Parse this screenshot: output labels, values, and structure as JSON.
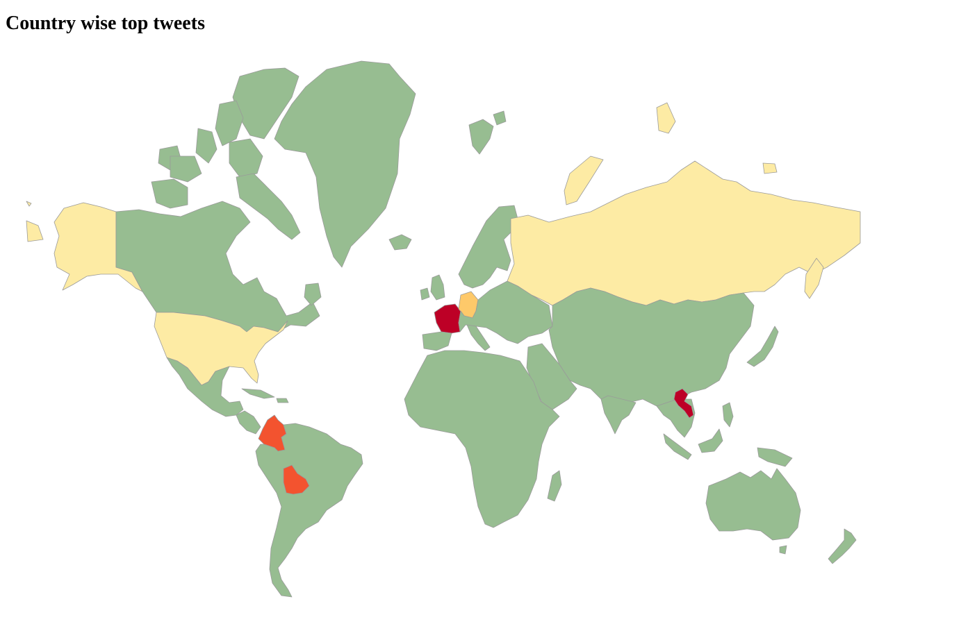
{
  "page": {
    "title": "Country wise top tweets"
  },
  "map": {
    "colors": {
      "default": "#97bd91",
      "low": "#fdeba4",
      "medium_low": "#fec96a",
      "medium_high": "#f3532f",
      "high": "#bd0026"
    },
    "highlighted_countries": [
      {
        "name": "United States",
        "level": "low"
      },
      {
        "name": "Alaska (United States)",
        "level": "low"
      },
      {
        "name": "Russia",
        "level": "low"
      },
      {
        "name": "Germany",
        "level": "medium_low"
      },
      {
        "name": "France",
        "level": "high"
      },
      {
        "name": "Laos",
        "level": "high"
      },
      {
        "name": "Colombia",
        "level": "medium_high"
      },
      {
        "name": "Bolivia",
        "level": "medium_high"
      }
    ]
  }
}
